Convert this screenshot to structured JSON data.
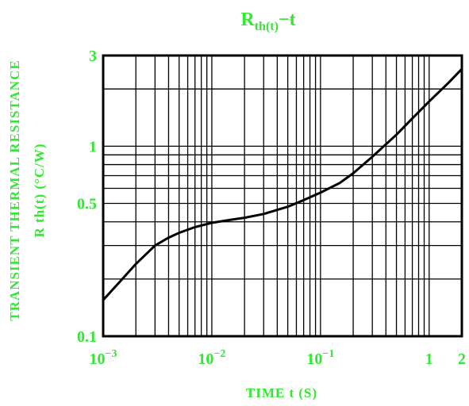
{
  "chart_data": {
    "type": "line",
    "title": {
      "main": "R",
      "sub": "th(t)",
      "tail": "−t"
    },
    "xlabel": "TIME  t  (S)",
    "ylabel_line1": "TRANSIENT  THERMAL  RESISTANCE",
    "ylabel_line2": "R th(t) (°C/W)",
    "x_scale": "log",
    "y_scale": "log",
    "xlim": [
      0.001,
      2
    ],
    "ylim": [
      0.1,
      3
    ],
    "grid": true,
    "x_ticks": [
      {
        "value": 0.001,
        "base": "10",
        "exp": "−3"
      },
      {
        "value": 0.01,
        "base": "10",
        "exp": "−2"
      },
      {
        "value": 0.1,
        "base": "10",
        "exp": "−1"
      },
      {
        "value": 1,
        "base": "1",
        "exp": ""
      },
      {
        "value": 2,
        "base": "2",
        "exp": ""
      }
    ],
    "y_ticks": [
      {
        "value": 3,
        "label": "3"
      },
      {
        "value": 1,
        "label": "1"
      },
      {
        "value": 0.5,
        "label": "0.5"
      },
      {
        "value": 0.1,
        "label": "0.1"
      }
    ],
    "series": [
      {
        "x": [
          0.001,
          0.0015,
          0.002,
          0.003,
          0.004,
          0.005,
          0.007,
          0.01,
          0.015,
          0.02,
          0.03,
          0.05,
          0.07,
          0.1,
          0.15,
          0.2,
          0.3,
          0.5,
          0.7,
          1,
          1.5,
          2
        ],
        "y": [
          0.155,
          0.2,
          0.24,
          0.3,
          0.33,
          0.35,
          0.375,
          0.395,
          0.41,
          0.42,
          0.44,
          0.48,
          0.52,
          0.57,
          0.64,
          0.72,
          0.88,
          1.15,
          1.4,
          1.72,
          2.15,
          2.55
        ]
      }
    ],
    "colors": {
      "text": "#33e833",
      "grid": "#000000",
      "curve": "#000000"
    }
  }
}
